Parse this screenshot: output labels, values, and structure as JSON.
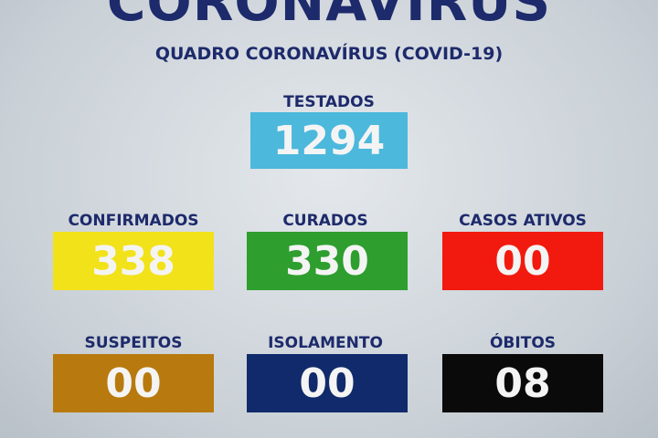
{
  "title": "CORONAVÍRUS",
  "subtitle": "QUADRO CORONAVÍRUS (COVID-19)",
  "stats": [
    {
      "label": "TESTADOS",
      "value": "1294",
      "color": "#4bb8dc"
    },
    {
      "label": "CONFIRMADOS",
      "value": "338",
      "color": "#f2e21a"
    },
    {
      "label": "CURADOS",
      "value": "330",
      "color": "#2e9e2e"
    },
    {
      "label": "CASOS ATIVOS",
      "value": "00",
      "color": "#f21a0f"
    },
    {
      "label": "SUSPEITOS",
      "value": "00",
      "color": "#b87a0e"
    },
    {
      "label": "ISOLAMENTO",
      "value": "00",
      "color": "#102a6b"
    },
    {
      "label": "ÓBITOS",
      "value": "08",
      "color": "#0a0a0a"
    }
  ]
}
